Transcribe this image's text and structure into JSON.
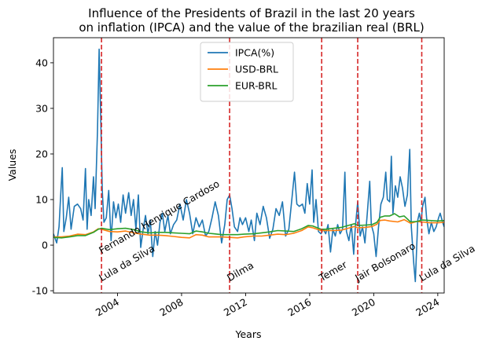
{
  "chart_data": {
    "type": "line",
    "title_line1": "Influence of the Presidents of Brazil in the last 20 years",
    "title_line2": "on inflation (IPCA) and the value of the brazilian real (BRL)",
    "xlabel": "Years",
    "ylabel": "Values",
    "xlim": [
      2000.0,
      2024.4
    ],
    "ylim": [
      -10.5,
      45.5
    ],
    "yticks": [
      -10,
      0,
      10,
      20,
      30,
      40
    ],
    "xticks": [
      2004,
      2008,
      2012,
      2016,
      2020,
      2024
    ],
    "grid": false,
    "legend_position": "top-center",
    "series": [
      {
        "name": "IPCA(%)",
        "color": "#1f77b4",
        "points": [
          [
            2000.0,
            2.5
          ],
          [
            2000.2,
            0.5
          ],
          [
            2000.35,
            4.0
          ],
          [
            2000.45,
            11.0
          ],
          [
            2000.55,
            17.0
          ],
          [
            2000.65,
            3.0
          ],
          [
            2000.8,
            6.0
          ],
          [
            2000.95,
            10.5
          ],
          [
            2001.1,
            3.5
          ],
          [
            2001.3,
            8.5
          ],
          [
            2001.5,
            9.0
          ],
          [
            2001.7,
            8.0
          ],
          [
            2001.85,
            5.5
          ],
          [
            2002.0,
            16.8
          ],
          [
            2002.1,
            3.5
          ],
          [
            2002.2,
            10.0
          ],
          [
            2002.35,
            6.5
          ],
          [
            2002.5,
            15.0
          ],
          [
            2002.6,
            8.0
          ],
          [
            2002.75,
            25.0
          ],
          [
            2002.85,
            43.0
          ],
          [
            2002.95,
            28.0
          ],
          [
            2003.05,
            12.0
          ],
          [
            2003.15,
            5.0
          ],
          [
            2003.3,
            6.0
          ],
          [
            2003.45,
            12.0
          ],
          [
            2003.6,
            1.0
          ],
          [
            2003.75,
            9.5
          ],
          [
            2003.9,
            6.0
          ],
          [
            2004.05,
            9.0
          ],
          [
            2004.2,
            5.0
          ],
          [
            2004.35,
            11.0
          ],
          [
            2004.5,
            7.0
          ],
          [
            2004.7,
            11.5
          ],
          [
            2004.85,
            6.5
          ],
          [
            2005.0,
            10.0
          ],
          [
            2005.15,
            3.5
          ],
          [
            2005.3,
            11.0
          ],
          [
            2005.45,
            -0.5
          ],
          [
            2005.6,
            3.5
          ],
          [
            2005.75,
            6.5
          ],
          [
            2005.9,
            2.5
          ],
          [
            2006.05,
            5.5
          ],
          [
            2006.2,
            -2.5
          ],
          [
            2006.35,
            3.0
          ],
          [
            2006.5,
            0.0
          ],
          [
            2006.65,
            5.0
          ],
          [
            2006.8,
            7.0
          ],
          [
            2006.95,
            3.0
          ],
          [
            2007.15,
            6.5
          ],
          [
            2007.3,
            2.5
          ],
          [
            2007.5,
            4.5
          ],
          [
            2007.7,
            5.5
          ],
          [
            2007.9,
            9.0
          ],
          [
            2008.1,
            5.5
          ],
          [
            2008.3,
            10.0
          ],
          [
            2008.5,
            7.0
          ],
          [
            2008.7,
            2.5
          ],
          [
            2008.9,
            6.0
          ],
          [
            2009.1,
            4.0
          ],
          [
            2009.3,
            5.5
          ],
          [
            2009.5,
            2.0
          ],
          [
            2009.7,
            3.0
          ],
          [
            2009.9,
            6.0
          ],
          [
            2010.1,
            9.5
          ],
          [
            2010.3,
            6.5
          ],
          [
            2010.5,
            0.5
          ],
          [
            2010.7,
            4.5
          ],
          [
            2010.85,
            10.0
          ],
          [
            2011.0,
            11.0
          ],
          [
            2011.15,
            8.0
          ],
          [
            2011.3,
            4.0
          ],
          [
            2011.5,
            3.0
          ],
          [
            2011.65,
            6.0
          ],
          [
            2011.8,
            4.5
          ],
          [
            2012.0,
            6.0
          ],
          [
            2012.2,
            3.0
          ],
          [
            2012.35,
            5.5
          ],
          [
            2012.55,
            1.0
          ],
          [
            2012.7,
            7.0
          ],
          [
            2012.9,
            4.5
          ],
          [
            2013.1,
            8.5
          ],
          [
            2013.3,
            6.0
          ],
          [
            2013.5,
            1.5
          ],
          [
            2013.7,
            3.5
          ],
          [
            2013.9,
            8.0
          ],
          [
            2014.1,
            6.5
          ],
          [
            2014.3,
            9.5
          ],
          [
            2014.5,
            2.0
          ],
          [
            2014.7,
            3.5
          ],
          [
            2014.9,
            10.5
          ],
          [
            2015.05,
            16.0
          ],
          [
            2015.2,
            9.0
          ],
          [
            2015.35,
            8.5
          ],
          [
            2015.55,
            9.0
          ],
          [
            2015.7,
            7.0
          ],
          [
            2015.85,
            13.5
          ],
          [
            2016.0,
            9.0
          ],
          [
            2016.15,
            16.5
          ],
          [
            2016.25,
            5.0
          ],
          [
            2016.4,
            10.0
          ],
          [
            2016.55,
            3.0
          ],
          [
            2016.7,
            2.5
          ],
          [
            2016.85,
            3.5
          ],
          [
            2017.0,
            2.5
          ],
          [
            2017.15,
            4.5
          ],
          [
            2017.3,
            -1.5
          ],
          [
            2017.45,
            3.5
          ],
          [
            2017.6,
            2.0
          ],
          [
            2017.75,
            4.5
          ],
          [
            2017.9,
            2.5
          ],
          [
            2018.05,
            3.5
          ],
          [
            2018.2,
            16.0
          ],
          [
            2018.3,
            3.0
          ],
          [
            2018.45,
            1.0
          ],
          [
            2018.6,
            4.5
          ],
          [
            2018.75,
            -2.0
          ],
          [
            2018.85,
            4.0
          ],
          [
            2019.0,
            9.5
          ],
          [
            2019.15,
            2.0
          ],
          [
            2019.3,
            4.0
          ],
          [
            2019.45,
            0.5
          ],
          [
            2019.6,
            7.0
          ],
          [
            2019.75,
            14.0
          ],
          [
            2019.85,
            4.5
          ],
          [
            2020.0,
            2.5
          ],
          [
            2020.15,
            -2.5
          ],
          [
            2020.3,
            4.0
          ],
          [
            2020.45,
            9.0
          ],
          [
            2020.6,
            10.5
          ],
          [
            2020.75,
            16.0
          ],
          [
            2020.85,
            10.0
          ],
          [
            2021.0,
            9.5
          ],
          [
            2021.1,
            19.5
          ],
          [
            2021.2,
            7.0
          ],
          [
            2021.35,
            13.0
          ],
          [
            2021.5,
            10.5
          ],
          [
            2021.65,
            15.0
          ],
          [
            2021.8,
            12.5
          ],
          [
            2021.95,
            8.5
          ],
          [
            2022.1,
            11.0
          ],
          [
            2022.25,
            21.0
          ],
          [
            2022.35,
            4.0
          ],
          [
            2022.5,
            -4.0
          ],
          [
            2022.6,
            -8.0
          ],
          [
            2022.75,
            5.5
          ],
          [
            2022.85,
            7.0
          ],
          [
            2022.95,
            5.0
          ],
          [
            2023.05,
            8.5
          ],
          [
            2023.2,
            10.5
          ],
          [
            2023.3,
            6.0
          ],
          [
            2023.45,
            2.5
          ],
          [
            2023.6,
            5.0
          ],
          [
            2023.75,
            3.0
          ],
          [
            2023.9,
            4.0
          ],
          [
            2024.05,
            6.0
          ],
          [
            2024.15,
            7.0
          ],
          [
            2024.3,
            5.0
          ],
          [
            2024.4,
            4.0
          ]
        ]
      },
      {
        "name": "USD-BRL",
        "color": "#ff7f0e",
        "points": [
          [
            2000.0,
            1.8
          ],
          [
            2000.5,
            1.8
          ],
          [
            2001.0,
            2.0
          ],
          [
            2001.5,
            2.4
          ],
          [
            2002.0,
            2.3
          ],
          [
            2002.5,
            2.9
          ],
          [
            2002.8,
            3.6
          ],
          [
            2003.0,
            3.5
          ],
          [
            2003.5,
            3.0
          ],
          [
            2004.0,
            2.9
          ],
          [
            2004.5,
            3.1
          ],
          [
            2005.0,
            2.7
          ],
          [
            2005.5,
            2.4
          ],
          [
            2006.0,
            2.2
          ],
          [
            2006.5,
            2.2
          ],
          [
            2007.0,
            2.1
          ],
          [
            2007.5,
            1.9
          ],
          [
            2008.0,
            1.7
          ],
          [
            2008.5,
            1.6
          ],
          [
            2008.9,
            2.3
          ],
          [
            2009.3,
            2.2
          ],
          [
            2009.7,
            1.8
          ],
          [
            2010.0,
            1.8
          ],
          [
            2010.5,
            1.8
          ],
          [
            2011.0,
            1.7
          ],
          [
            2011.5,
            1.6
          ],
          [
            2011.9,
            1.8
          ],
          [
            2012.5,
            2.0
          ],
          [
            2013.0,
            2.0
          ],
          [
            2013.5,
            2.2
          ],
          [
            2014.0,
            2.4
          ],
          [
            2014.5,
            2.3
          ],
          [
            2015.0,
            2.6
          ],
          [
            2015.5,
            3.2
          ],
          [
            2015.9,
            4.0
          ],
          [
            2016.2,
            3.8
          ],
          [
            2016.7,
            3.2
          ],
          [
            2017.0,
            3.2
          ],
          [
            2017.5,
            3.2
          ],
          [
            2018.0,
            3.3
          ],
          [
            2018.5,
            3.8
          ],
          [
            2018.8,
            4.1
          ],
          [
            2019.0,
            3.8
          ],
          [
            2019.5,
            3.9
          ],
          [
            2019.9,
            4.1
          ],
          [
            2020.2,
            4.6
          ],
          [
            2020.4,
            5.4
          ],
          [
            2020.7,
            5.5
          ],
          [
            2021.0,
            5.3
          ],
          [
            2021.5,
            5.1
          ],
          [
            2021.9,
            5.6
          ],
          [
            2022.3,
            4.8
          ],
          [
            2022.7,
            5.2
          ],
          [
            2023.0,
            5.1
          ],
          [
            2023.5,
            4.9
          ],
          [
            2024.0,
            4.9
          ],
          [
            2024.4,
            5.0
          ]
        ]
      },
      {
        "name": "EUR-BRL",
        "color": "#2ca02c",
        "points": [
          [
            2000.0,
            1.7
          ],
          [
            2000.5,
            1.6
          ],
          [
            2001.0,
            1.8
          ],
          [
            2001.5,
            2.1
          ],
          [
            2002.0,
            2.1
          ],
          [
            2002.5,
            2.8
          ],
          [
            2002.8,
            3.5
          ],
          [
            2003.0,
            3.7
          ],
          [
            2003.5,
            3.4
          ],
          [
            2004.0,
            3.6
          ],
          [
            2004.5,
            3.7
          ],
          [
            2005.0,
            3.4
          ],
          [
            2005.5,
            2.9
          ],
          [
            2006.0,
            2.7
          ],
          [
            2006.5,
            2.8
          ],
          [
            2007.0,
            2.8
          ],
          [
            2007.5,
            2.7
          ],
          [
            2008.0,
            2.6
          ],
          [
            2008.5,
            2.5
          ],
          [
            2008.9,
            3.1
          ],
          [
            2009.3,
            2.9
          ],
          [
            2009.7,
            2.6
          ],
          [
            2010.0,
            2.5
          ],
          [
            2010.5,
            2.3
          ],
          [
            2011.0,
            2.3
          ],
          [
            2011.5,
            2.3
          ],
          [
            2011.9,
            2.4
          ],
          [
            2012.5,
            2.5
          ],
          [
            2013.0,
            2.7
          ],
          [
            2013.5,
            2.9
          ],
          [
            2014.0,
            3.2
          ],
          [
            2014.5,
            3.1
          ],
          [
            2015.0,
            3.0
          ],
          [
            2015.5,
            3.6
          ],
          [
            2015.9,
            4.3
          ],
          [
            2016.2,
            4.2
          ],
          [
            2016.7,
            3.5
          ],
          [
            2017.0,
            3.5
          ],
          [
            2017.5,
            3.7
          ],
          [
            2018.0,
            3.9
          ],
          [
            2018.5,
            4.4
          ],
          [
            2018.8,
            4.7
          ],
          [
            2019.0,
            4.3
          ],
          [
            2019.5,
            4.4
          ],
          [
            2019.9,
            4.5
          ],
          [
            2020.2,
            5.0
          ],
          [
            2020.4,
            6.1
          ],
          [
            2020.7,
            6.4
          ],
          [
            2021.0,
            6.4
          ],
          [
            2021.3,
            6.9
          ],
          [
            2021.6,
            6.2
          ],
          [
            2021.9,
            6.4
          ],
          [
            2022.3,
            5.1
          ],
          [
            2022.7,
            5.2
          ],
          [
            2023.0,
            5.5
          ],
          [
            2023.5,
            5.4
          ],
          [
            2024.0,
            5.3
          ],
          [
            2024.4,
            5.4
          ]
        ]
      }
    ],
    "vlines": {
      "color": "#d62728",
      "style": "dashed",
      "x": [
        2003.0,
        2011.0,
        2016.75,
        2019.0,
        2023.0
      ]
    },
    "annotations": [
      {
        "text": "Fernando Henrique Cardoso",
        "x": 2003.0,
        "y": -2.0,
        "rotation": -30
      },
      {
        "text": "Lula da Silva",
        "x": 2003.0,
        "y": -8.0,
        "rotation": -30
      },
      {
        "text": "Dilma",
        "x": 2011.0,
        "y": -8.0,
        "rotation": -30
      },
      {
        "text": "Temer",
        "x": 2016.75,
        "y": -8.0,
        "rotation": -30
      },
      {
        "text": "Jair Bolsonaro",
        "x": 2019.0,
        "y": -8.0,
        "rotation": -30
      },
      {
        "text": "Lula da Silva",
        "x": 2023.0,
        "y": -8.0,
        "rotation": -30
      }
    ]
  }
}
